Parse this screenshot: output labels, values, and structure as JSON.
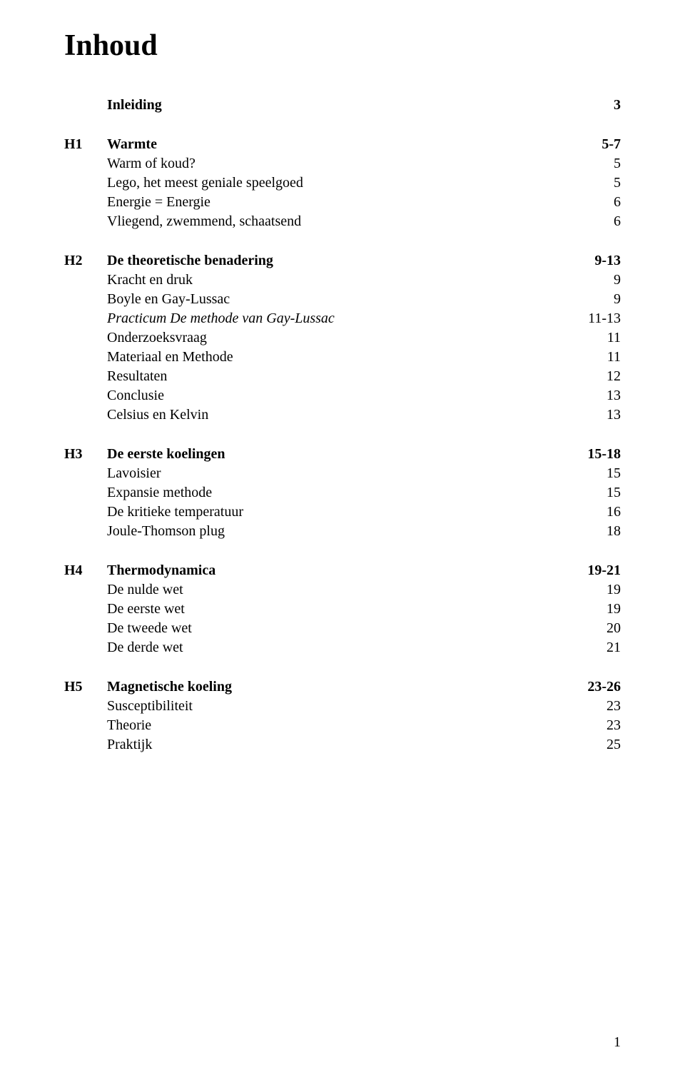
{
  "title": "Inhoud",
  "page_number": "1",
  "sections": [
    {
      "heading_col": "",
      "heading_label": "Inleiding",
      "heading_page": "3",
      "heading_bold": true,
      "items": []
    },
    {
      "heading_col": "H1",
      "heading_label": "Warmte",
      "heading_page": "5-7",
      "heading_bold": true,
      "items": [
        {
          "label": "Warm of koud?",
          "page": "5",
          "italic": false
        },
        {
          "label": "Lego, het meest geniale speelgoed",
          "page": "5",
          "italic": false
        },
        {
          "label": "Energie = Energie",
          "page": "6",
          "italic": false
        },
        {
          "label": "Vliegend, zwemmend, schaatsend",
          "page": "6",
          "italic": false
        }
      ]
    },
    {
      "heading_col": "H2",
      "heading_label": "De theoretische benadering",
      "heading_page": "9-13",
      "heading_bold": true,
      "items": [
        {
          "label": "Kracht en druk",
          "page": "9",
          "italic": false
        },
        {
          "label": "Boyle en Gay-Lussac",
          "page": "9",
          "italic": false
        },
        {
          "label": "Practicum De methode van Gay-Lussac",
          "page": "11-13",
          "italic": true
        },
        {
          "label": "Onderzoeksvraag",
          "page": "11",
          "italic": false
        },
        {
          "label": "Materiaal en Methode",
          "page": "11",
          "italic": false
        },
        {
          "label": "Resultaten",
          "page": "12",
          "italic": false
        },
        {
          "label": "Conclusie",
          "page": "13",
          "italic": false
        },
        {
          "label": "Celsius en Kelvin",
          "page": "13",
          "italic": false
        }
      ]
    },
    {
      "heading_col": "H3",
      "heading_label": "De eerste koelingen",
      "heading_page": "15-18",
      "heading_bold": true,
      "items": [
        {
          "label": "Lavoisier",
          "page": "15",
          "italic": false
        },
        {
          "label": "Expansie methode",
          "page": "15",
          "italic": false
        },
        {
          "label": "De kritieke temperatuur",
          "page": "16",
          "italic": false
        },
        {
          "label": "Joule-Thomson plug",
          "page": "18",
          "italic": false
        }
      ]
    },
    {
      "heading_col": "H4",
      "heading_label": "Thermodynamica",
      "heading_page": "19-21",
      "heading_bold": true,
      "items": [
        {
          "label": "De nulde wet",
          "page": "19",
          "italic": false
        },
        {
          "label": "De eerste wet",
          "page": "19",
          "italic": false
        },
        {
          "label": "De tweede wet",
          "page": "20",
          "italic": false
        },
        {
          "label": "De derde wet",
          "page": "21",
          "italic": false
        }
      ]
    },
    {
      "heading_col": "H5",
      "heading_label": "Magnetische koeling",
      "heading_page": "23-26",
      "heading_bold": true,
      "items": [
        {
          "label": "Susceptibiliteit",
          "page": "23",
          "italic": false
        },
        {
          "label": "Theorie",
          "page": "23",
          "italic": false
        },
        {
          "label": "Praktijk",
          "page": "25",
          "italic": false
        }
      ]
    }
  ]
}
